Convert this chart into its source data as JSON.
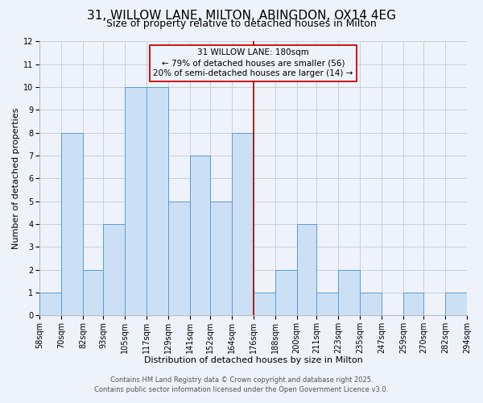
{
  "title": "31, WILLOW LANE, MILTON, ABINGDON, OX14 4EG",
  "subtitle": "Size of property relative to detached houses in Milton",
  "xlabel": "Distribution of detached houses by size in Milton",
  "ylabel": "Number of detached properties",
  "bin_edges": [
    58,
    70,
    82,
    93,
    105,
    117,
    129,
    141,
    152,
    164,
    176,
    188,
    200,
    211,
    223,
    235,
    247,
    259,
    270,
    282,
    294
  ],
  "bin_labels": [
    "58sqm",
    "70sqm",
    "82sqm",
    "93sqm",
    "105sqm",
    "117sqm",
    "129sqm",
    "141sqm",
    "152sqm",
    "164sqm",
    "176sqm",
    "188sqm",
    "200sqm",
    "211sqm",
    "223sqm",
    "235sqm",
    "247sqm",
    "259sqm",
    "270sqm",
    "282sqm",
    "294sqm"
  ],
  "bar_heights": [
    1,
    8,
    2,
    4,
    10,
    10,
    5,
    7,
    5,
    8,
    1,
    2,
    4,
    1,
    2,
    1,
    0,
    1,
    0,
    1
  ],
  "bar_color": "#cce0f5",
  "bar_edge_color": "#5b9bd5",
  "grid_color": "#c8d0dc",
  "bg_color": "#eef2fa",
  "red_line_x": 176,
  "red_line_color": "#aa0000",
  "annotation_text": "31 WILLOW LANE: 180sqm\n← 79% of detached houses are smaller (56)\n20% of semi-detached houses are larger (14) →",
  "annotation_box_edge_color": "#cc0000",
  "ylim_max": 12,
  "yticks": [
    0,
    1,
    2,
    3,
    4,
    5,
    6,
    7,
    8,
    9,
    10,
    11,
    12
  ],
  "footer_line1": "Contains HM Land Registry data © Crown copyright and database right 2025.",
  "footer_line2": "Contains public sector information licensed under the Open Government Licence v3.0.",
  "title_fontsize": 11,
  "subtitle_fontsize": 9,
  "axis_label_fontsize": 8,
  "tick_fontsize": 7,
  "footer_fontsize": 6,
  "annotation_fontsize": 7.5
}
